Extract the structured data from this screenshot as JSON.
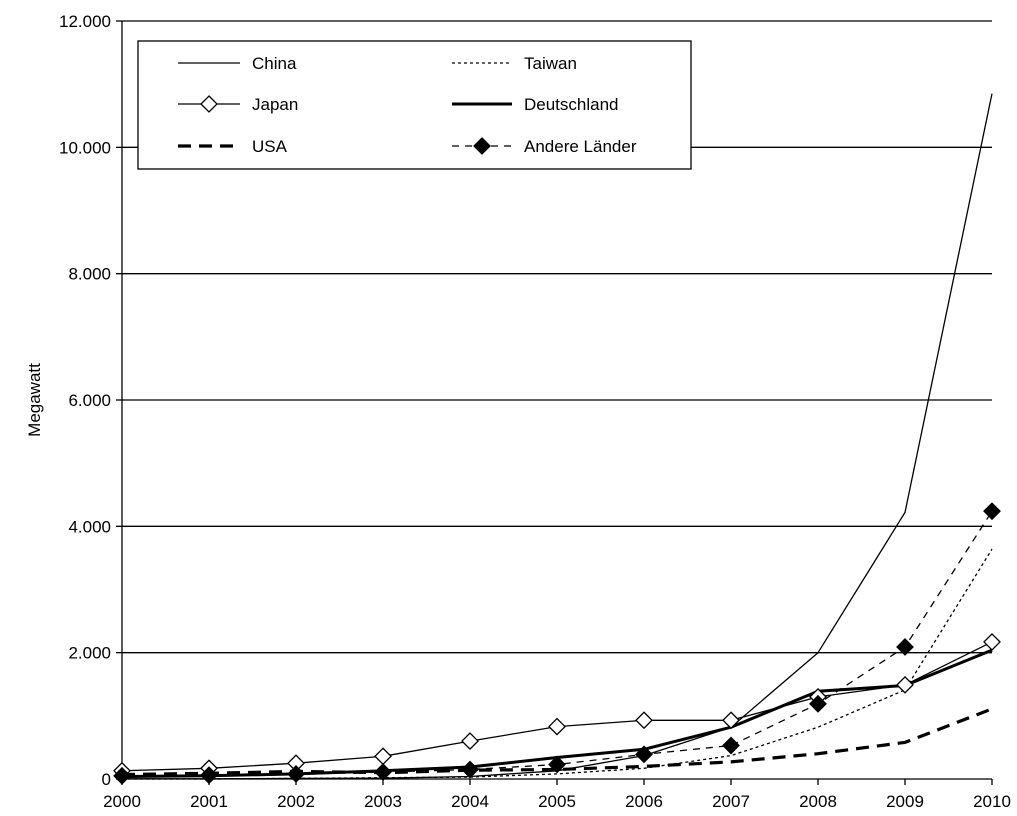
{
  "chart_data": {
    "type": "line",
    "title": "",
    "xlabel": "",
    "ylabel": "Megawatt",
    "x": [
      "2000",
      "2001",
      "2002",
      "2003",
      "2004",
      "2005",
      "2006",
      "2007",
      "2008",
      "2009",
      "2010"
    ],
    "ylim": [
      0,
      12000
    ],
    "yticks": [
      0,
      2000,
      4000,
      6000,
      8000,
      10000,
      12000
    ],
    "ytick_labels": [
      "0",
      "2.000",
      "4.000",
      "6.000",
      "8.000",
      "10.000",
      "12.000"
    ],
    "grid": "horizontal major gridlines",
    "legend_position": "top-left",
    "series": [
      {
        "name": "China",
        "values": [
          3,
          3,
          10,
          13,
          40,
          130,
          370,
          820,
          2000,
          4220,
          10850
        ],
        "color": "#000000",
        "style": "thin-solid",
        "marker": "none"
      },
      {
        "name": "Taiwan",
        "values": [
          0,
          0,
          10,
          20,
          30,
          80,
          170,
          370,
          820,
          1410,
          3640
        ],
        "color": "#000000",
        "style": "thin-dotted",
        "marker": "none"
      },
      {
        "name": "Japan",
        "values": [
          130,
          170,
          250,
          360,
          600,
          830,
          930,
          930,
          1300,
          1490,
          2170
        ],
        "color": "#000000",
        "style": "thin-solid",
        "marker": "open-diamond"
      },
      {
        "name": "Deutschland",
        "values": [
          40,
          50,
          80,
          130,
          190,
          340,
          470,
          820,
          1390,
          1480,
          2040
        ],
        "color": "#000000",
        "style": "thick-solid",
        "marker": "none"
      },
      {
        "name": "USA",
        "values": [
          70,
          90,
          120,
          100,
          140,
          150,
          200,
          270,
          400,
          580,
          1110
        ],
        "color": "#000000",
        "style": "thick-dashed",
        "marker": "none"
      },
      {
        "name": "Andere Länder",
        "values": [
          50,
          60,
          80,
          110,
          150,
          230,
          390,
          530,
          1190,
          2090,
          4240
        ],
        "color": "#000000",
        "style": "thin-dashed",
        "marker": "filled-diamond"
      }
    ]
  }
}
